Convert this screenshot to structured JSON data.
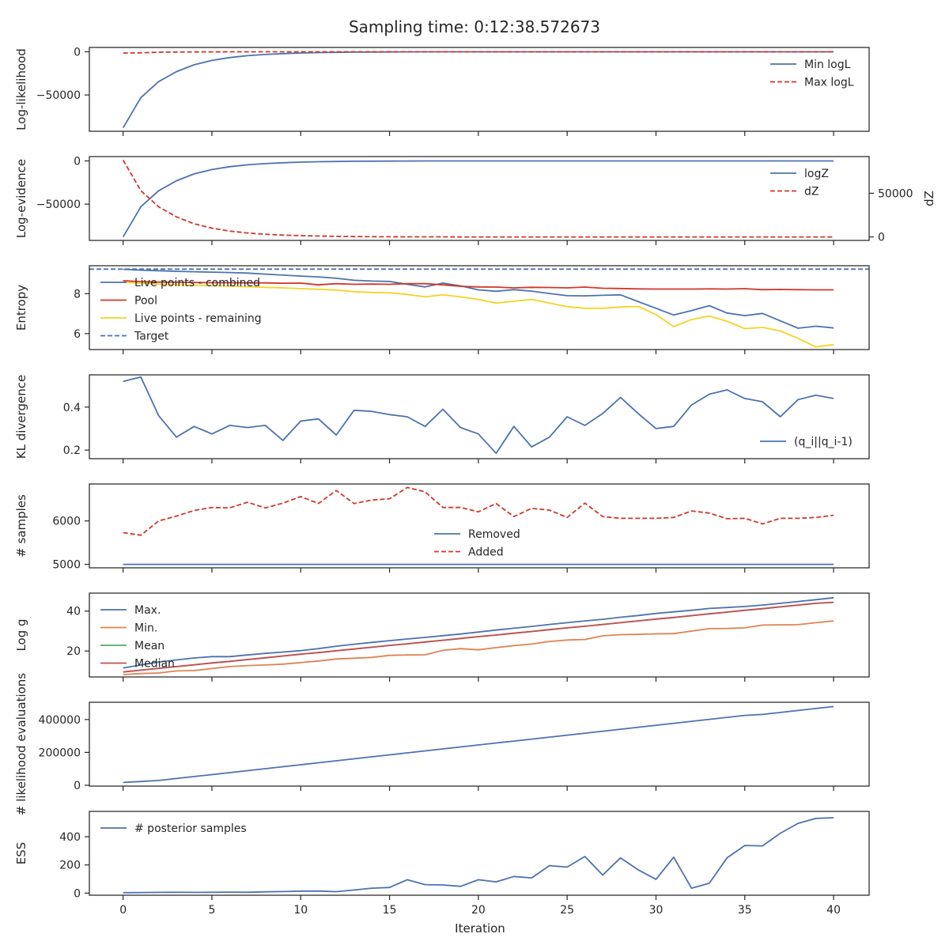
{
  "figure": {
    "title": "Sampling time: 0:12:38.572673",
    "xlabel": "Iteration",
    "x": [
      0,
      1,
      2,
      3,
      4,
      5,
      6,
      7,
      8,
      9,
      10,
      11,
      12,
      13,
      14,
      15,
      16,
      17,
      18,
      19,
      20,
      21,
      22,
      23,
      24,
      25,
      26,
      27,
      28,
      29,
      30,
      31,
      32,
      33,
      34,
      35,
      36,
      37,
      38,
      39,
      40
    ],
    "xticks": [
      0,
      5,
      10,
      15,
      20,
      25,
      30,
      35,
      40
    ],
    "xlim": [
      -1.9,
      42
    ]
  },
  "colors": {
    "blue": "#4c72b0",
    "red": "#d1382a",
    "yellow": "#f5d327",
    "orange": "#dd8452",
    "green": "#55a868",
    "median": "#c44e52",
    "text": "#262626"
  },
  "chart_data": [
    {
      "type": "line",
      "ylabel": "Log-likelihood",
      "ylim": [
        -92000,
        5000
      ],
      "yticks": [
        0,
        -50000
      ],
      "legend": "right",
      "series": [
        {
          "name": "Min logL",
          "color": "#4c72b0",
          "dash": false,
          "values": [
            -88000,
            -53000,
            -34500,
            -23000,
            -15000,
            -10000,
            -6700,
            -4500,
            -3100,
            -2100,
            -1400,
            -950,
            -650,
            -430,
            -280,
            -180,
            -110,
            -70,
            -40,
            -25,
            -15,
            -8,
            -5,
            -3,
            -2,
            -1,
            -0.5,
            -0.3,
            -0.2,
            -0.1,
            -0.05,
            0,
            0,
            0,
            0,
            0,
            0,
            0,
            0,
            0,
            0
          ]
        },
        {
          "name": "Max logL",
          "color": "#d1382a",
          "dash": true,
          "values": [
            -1500,
            -1200,
            -500,
            -300,
            -200,
            -100,
            -50,
            -30,
            -20,
            -10,
            0,
            0,
            0,
            0,
            0,
            0,
            0,
            0,
            0,
            0,
            0,
            0,
            0,
            0,
            0,
            0,
            0,
            0,
            0,
            0,
            0,
            0,
            0,
            0,
            0,
            0,
            0,
            0,
            0,
            0,
            0
          ]
        }
      ]
    },
    {
      "type": "line",
      "ylabel": "Log-evidence",
      "ylim": [
        -92000,
        5000
      ],
      "yticks": [
        0,
        -50000
      ],
      "y2label": "dZ",
      "y2lim": [
        -4000,
        92000
      ],
      "y2ticks": [
        0,
        50000
      ],
      "legend": "right",
      "series": [
        {
          "name": "logZ",
          "color": "#4c72b0",
          "dash": false,
          "axis": "left",
          "values": [
            -88000,
            -53000,
            -34500,
            -23000,
            -15000,
            -10000,
            -6700,
            -4500,
            -3100,
            -2100,
            -1400,
            -950,
            -650,
            -430,
            -280,
            -180,
            -110,
            -70,
            -40,
            -25,
            -15,
            -8,
            -5,
            -3,
            -2,
            -1,
            -0.5,
            -0.3,
            -0.2,
            -0.1,
            -0.05,
            0,
            0,
            0,
            0,
            0,
            0,
            0,
            0,
            0,
            0
          ]
        },
        {
          "name": "dZ",
          "color": "#d1382a",
          "dash": true,
          "axis": "right",
          "values": [
            88000,
            53000,
            34500,
            23000,
            15000,
            10000,
            6700,
            4500,
            3100,
            2100,
            1400,
            950,
            650,
            430,
            280,
            180,
            110,
            70,
            40,
            25,
            15,
            8,
            5,
            3,
            2,
            1,
            0.5,
            0.3,
            0.2,
            0.1,
            0.05,
            0,
            0,
            0,
            0,
            0,
            0,
            0,
            0,
            0,
            0
          ]
        }
      ]
    },
    {
      "type": "line",
      "ylabel": "Entropy",
      "ylim": [
        5.2,
        9.4
      ],
      "yticks": [
        6,
        8
      ],
      "legend": "upper-left",
      "hline": {
        "name": "Target",
        "value": 9.23,
        "color": "#4c72b0",
        "dash": true
      },
      "series": [
        {
          "name": "Live points - combined",
          "color": "#4c72b0",
          "dash": false,
          "values": [
            9.22,
            9.18,
            9.15,
            9.12,
            9.1,
            9.08,
            9.06,
            9.03,
            8.98,
            8.93,
            8.88,
            8.84,
            8.77,
            8.67,
            8.63,
            8.61,
            8.47,
            8.34,
            8.53,
            8.39,
            8.19,
            8.12,
            8.2,
            8.13,
            8.01,
            7.9,
            7.89,
            7.92,
            7.94,
            7.6,
            7.27,
            6.93,
            7.15,
            7.4,
            7.03,
            6.9,
            7.01,
            6.64,
            6.27,
            6.37,
            6.28
          ]
        },
        {
          "name": "Pool",
          "color": "#d1382a",
          "dash": false,
          "values": [
            8.65,
            8.6,
            8.58,
            8.57,
            8.56,
            8.55,
            8.55,
            8.54,
            8.54,
            8.52,
            8.53,
            8.44,
            8.5,
            8.47,
            8.48,
            8.47,
            8.5,
            8.5,
            8.44,
            8.37,
            8.34,
            8.33,
            8.29,
            8.32,
            8.31,
            8.29,
            8.33,
            8.27,
            8.26,
            8.24,
            8.23,
            8.23,
            8.23,
            8.24,
            8.23,
            8.25,
            8.2,
            8.21,
            8.2,
            8.19,
            8.19
          ]
        },
        {
          "name": "Live points - remaining",
          "color": "#f5d327",
          "dash": false,
          "values": [
            8.58,
            8.52,
            8.48,
            8.45,
            8.42,
            8.4,
            8.38,
            8.35,
            8.32,
            8.29,
            8.25,
            8.22,
            8.18,
            8.1,
            8.06,
            8.04,
            7.96,
            7.84,
            7.94,
            7.84,
            7.71,
            7.53,
            7.62,
            7.71,
            7.53,
            7.35,
            7.27,
            7.27,
            7.33,
            7.36,
            6.95,
            6.35,
            6.7,
            6.88,
            6.62,
            6.25,
            6.31,
            6.13,
            5.76,
            5.33,
            5.45
          ]
        }
      ]
    },
    {
      "type": "line",
      "ylabel": "KL divergence",
      "ylim": [
        0.16,
        0.55
      ],
      "yticks": [
        0.2,
        0.4
      ],
      "legend": "lower-right",
      "series": [
        {
          "name": "(q_i||q_i-1)",
          "color": "#4c72b0",
          "dash": false,
          "values": [
            0.52,
            0.54,
            0.36,
            0.26,
            0.31,
            0.275,
            0.315,
            0.305,
            0.315,
            0.245,
            0.335,
            0.345,
            0.27,
            0.385,
            0.38,
            0.365,
            0.355,
            0.31,
            0.39,
            0.305,
            0.275,
            0.185,
            0.31,
            0.215,
            0.26,
            0.355,
            0.315,
            0.37,
            0.445,
            0.37,
            0.3,
            0.31,
            0.41,
            0.46,
            0.48,
            0.44,
            0.425,
            0.355,
            0.435,
            0.455,
            0.44
          ]
        }
      ]
    },
    {
      "type": "line",
      "ylabel": "# samples",
      "ylim": [
        4920,
        6850
      ],
      "yticks": [
        5000,
        6000
      ],
      "legend": "center",
      "series": [
        {
          "name": "Removed",
          "color": "#4c72b0",
          "dash": false,
          "values": [
            5000,
            5000,
            5000,
            5000,
            5000,
            5000,
            5000,
            5000,
            5000,
            5000,
            5000,
            5000,
            5000,
            5000,
            5000,
            5000,
            5000,
            5000,
            5000,
            5000,
            5000,
            5000,
            5000,
            5000,
            5000,
            5000,
            5000,
            5000,
            5000,
            5000,
            5000,
            5000,
            5000,
            5000,
            5000,
            5000,
            5000,
            5000,
            5000,
            5000,
            5000
          ]
        },
        {
          "name": "Added",
          "color": "#d1382a",
          "dash": true,
          "values": [
            5730,
            5670,
            6000,
            6110,
            6240,
            6310,
            6300,
            6430,
            6300,
            6410,
            6560,
            6400,
            6700,
            6400,
            6480,
            6510,
            6770,
            6670,
            6310,
            6310,
            6210,
            6400,
            6100,
            6290,
            6250,
            6080,
            6410,
            6100,
            6060,
            6060,
            6060,
            6080,
            6230,
            6180,
            6050,
            6060,
            5930,
            6060,
            6060,
            6080,
            6130
          ]
        }
      ]
    },
    {
      "type": "line",
      "ylabel": "Log g",
      "ylim": [
        7,
        49
      ],
      "yticks": [
        20,
        40
      ],
      "legend": "upper-left",
      "series": [
        {
          "name": "Max.",
          "color": "#4c72b0",
          "dash": false,
          "values": [
            11.5,
            13,
            14.5,
            15.5,
            16.5,
            17.2,
            17.2,
            18,
            18.8,
            19.5,
            20.2,
            21.2,
            22.4,
            23.4,
            24.3,
            25.2,
            26,
            26.8,
            27.7,
            28.5,
            29.5,
            30.5,
            31.4,
            32.3,
            33.3,
            34.2,
            35.1,
            35.9,
            36.9,
            37.8,
            38.8,
            39.6,
            40.4,
            41.3,
            41.8,
            42.3,
            43,
            43.9,
            44.8,
            45.7,
            46.7
          ]
        },
        {
          "name": "Min.",
          "color": "#dd8452",
          "dash": false,
          "values": [
            8.2,
            8.7,
            9,
            10,
            10.2,
            11.2,
            12.2,
            12.7,
            13,
            13.4,
            14.2,
            15,
            16,
            16.4,
            16.8,
            17.8,
            18,
            18.1,
            20.3,
            21.2,
            20.6,
            21.7,
            22.7,
            23.5,
            24.8,
            25.5,
            25.8,
            27.6,
            28.2,
            28.3,
            28.6,
            28.7,
            30,
            31.2,
            31.3,
            31.6,
            33,
            33.1,
            33.2,
            34.2,
            35.1
          ]
        },
        {
          "name": "Mean",
          "color": "#55a868",
          "dash": false,
          "values": [
            9.5,
            10.4,
            11.3,
            12.2,
            13.1,
            14,
            14.8,
            15.7,
            16.6,
            17.5,
            18.4,
            19.2,
            20.1,
            21,
            21.9,
            22.8,
            23.6,
            24.5,
            25.4,
            26.3,
            27.2,
            28,
            28.9,
            29.8,
            30.7,
            31.6,
            32.4,
            33.3,
            34.2,
            35.1,
            36,
            36.8,
            37.7,
            38.6,
            39.5,
            40.4,
            41.2,
            42.1,
            43,
            43.9,
            44.4
          ]
        },
        {
          "name": "Median",
          "color": "#c44e52",
          "dash": false,
          "values": [
            9.5,
            10.4,
            11.3,
            12.2,
            13.1,
            14,
            14.8,
            15.7,
            16.6,
            17.5,
            18.4,
            19.2,
            20.1,
            21,
            21.9,
            22.8,
            23.6,
            24.5,
            25.4,
            26.3,
            27.2,
            28,
            28.9,
            29.8,
            30.7,
            31.6,
            32.4,
            33.3,
            34.2,
            35.1,
            36,
            36.8,
            37.7,
            38.6,
            39.5,
            40.4,
            41.2,
            42.1,
            43,
            43.9,
            44.4
          ]
        }
      ]
    },
    {
      "type": "line",
      "ylabel": "# likelihood evaluations",
      "ylim": [
        -5000,
        505000
      ],
      "yticks": [
        0,
        200000,
        400000
      ],
      "legend": "none",
      "series": [
        {
          "name": "",
          "color": "#4c72b0",
          "dash": false,
          "values": [
            17000,
            23000,
            29000,
            41000,
            53000,
            65000,
            77000,
            89000,
            101000,
            113000,
            125000,
            137000,
            149000,
            161000,
            173000,
            185000,
            197000,
            209000,
            221000,
            233000,
            245000,
            257000,
            269000,
            281000,
            293000,
            305000,
            317000,
            329000,
            341000,
            353000,
            365000,
            377000,
            389000,
            401000,
            413000,
            425000,
            431000,
            443000,
            455000,
            467000,
            479000
          ]
        }
      ]
    },
    {
      "type": "line",
      "ylabel": "ESS",
      "ylim": [
        -15,
        580
      ],
      "yticks": [
        0,
        200,
        400
      ],
      "legend": "upper-left",
      "series": [
        {
          "name": "# posterior samples",
          "color": "#4c72b0",
          "dash": false,
          "values": [
            3,
            4,
            5,
            6,
            5,
            6,
            7,
            6,
            9,
            11,
            14,
            15,
            10,
            22,
            35,
            40,
            95,
            60,
            58,
            48,
            95,
            80,
            118,
            108,
            195,
            185,
            260,
            128,
            250,
            165,
            98,
            255,
            35,
            70,
            250,
            338,
            335,
            425,
            495,
            530,
            535
          ]
        }
      ]
    }
  ]
}
